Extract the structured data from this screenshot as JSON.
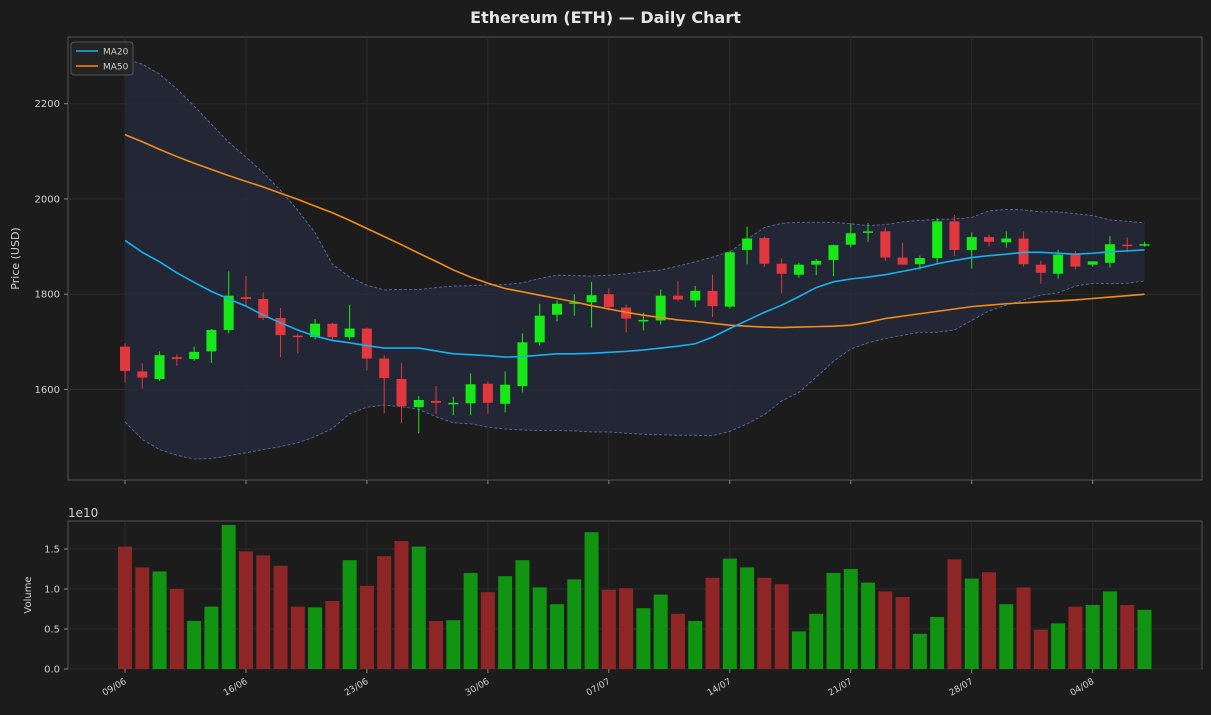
{
  "chart_data": [
    {
      "type": "candlestick",
      "title": "Ethereum (ETH) — Daily Chart",
      "ylabel": "Price (USD)",
      "ylim": [
        1410,
        2340
      ],
      "yticks": [
        "1600",
        "1800",
        "2000",
        "2200"
      ],
      "date_labels": [
        "09/06",
        "16/06",
        "23/06",
        "30/06",
        "07/07",
        "14/07",
        "21/07",
        "28/07",
        "04/08"
      ],
      "legend": [
        "MA20",
        "MA50"
      ],
      "legend_position": "top-left",
      "grid": true,
      "colors": {
        "up": "#17e817",
        "down": "#e0383e",
        "ma20": "#1ab0ef",
        "ma50": "#f28c1a",
        "band": "#5a6aa8"
      },
      "ohlc": [
        [
          1690,
          1697,
          1615,
          1639
        ],
        [
          1638,
          1655,
          1602,
          1625
        ],
        [
          1622,
          1680,
          1618,
          1672
        ],
        [
          1668,
          1674,
          1650,
          1664
        ],
        [
          1664,
          1690,
          1660,
          1679
        ],
        [
          1680,
          1727,
          1656,
          1725
        ],
        [
          1725,
          1848,
          1718,
          1797
        ],
        [
          1794,
          1838,
          1775,
          1790
        ],
        [
          1790,
          1804,
          1746,
          1750
        ],
        [
          1750,
          1771,
          1668,
          1714
        ],
        [
          1713,
          1717,
          1676,
          1711
        ],
        [
          1710,
          1748,
          1705,
          1738
        ],
        [
          1738,
          1740,
          1703,
          1710
        ],
        [
          1710,
          1778,
          1704,
          1728
        ],
        [
          1728,
          1730,
          1640,
          1665
        ],
        [
          1665,
          1672,
          1550,
          1624
        ],
        [
          1622,
          1655,
          1530,
          1565
        ],
        [
          1563,
          1586,
          1508,
          1578
        ],
        [
          1576,
          1607,
          1549,
          1572
        ],
        [
          1571,
          1585,
          1546,
          1572
        ],
        [
          1571,
          1634,
          1546,
          1611
        ],
        [
          1612,
          1617,
          1549,
          1572
        ],
        [
          1570,
          1638,
          1552,
          1610
        ],
        [
          1607,
          1718,
          1594,
          1699
        ],
        [
          1699,
          1780,
          1692,
          1755
        ],
        [
          1757,
          1787,
          1743,
          1780
        ],
        [
          1780,
          1800,
          1755,
          1783
        ],
        [
          1783,
          1826,
          1730,
          1798
        ],
        [
          1800,
          1812,
          1766,
          1773
        ],
        [
          1772,
          1778,
          1720,
          1749
        ],
        [
          1744,
          1761,
          1724,
          1746
        ],
        [
          1745,
          1810,
          1736,
          1797
        ],
        [
          1797,
          1827,
          1785,
          1789
        ],
        [
          1787,
          1817,
          1773,
          1807
        ],
        [
          1807,
          1841,
          1752,
          1775
        ],
        [
          1774,
          1890,
          1770,
          1888
        ],
        [
          1893,
          1942,
          1863,
          1917
        ],
        [
          1918,
          1921,
          1857,
          1864
        ],
        [
          1864,
          1875,
          1802,
          1843
        ],
        [
          1841,
          1866,
          1835,
          1862
        ],
        [
          1862,
          1874,
          1840,
          1870
        ],
        [
          1872,
          1904,
          1838,
          1903
        ],
        [
          1904,
          1949,
          1898,
          1928
        ],
        [
          1930,
          1950,
          1910,
          1932
        ],
        [
          1932,
          1940,
          1870,
          1877
        ],
        [
          1877,
          1908,
          1862,
          1862
        ],
        [
          1863,
          1881,
          1852,
          1876
        ],
        [
          1876,
          1960,
          1865,
          1953
        ],
        [
          1953,
          1966,
          1880,
          1893
        ],
        [
          1893,
          1930,
          1854,
          1920
        ],
        [
          1920,
          1925,
          1900,
          1910
        ],
        [
          1909,
          1932,
          1898,
          1917
        ],
        [
          1917,
          1932,
          1858,
          1863
        ],
        [
          1862,
          1870,
          1822,
          1845
        ],
        [
          1843,
          1893,
          1833,
          1883
        ],
        [
          1883,
          1891,
          1852,
          1858
        ],
        [
          1862,
          1866,
          1858,
          1869
        ],
        [
          1866,
          1922,
          1856,
          1905
        ],
        [
          1904,
          1919,
          1888,
          1903
        ],
        [
          1903,
          1910,
          1900,
          1905
        ]
      ],
      "ma20": [
        1913,
        1888,
        1868,
        1845,
        1825,
        1806,
        1790,
        1775,
        1756,
        1740,
        1725,
        1712,
        1703,
        1698,
        1692,
        1687,
        1687,
        1687,
        1681,
        1675,
        1673,
        1671,
        1668,
        1669,
        1672,
        1675,
        1675,
        1676,
        1678,
        1680,
        1683,
        1687,
        1691,
        1696,
        1710,
        1728,
        1745,
        1762,
        1777,
        1795,
        1814,
        1826,
        1832,
        1836,
        1841,
        1848,
        1855,
        1864,
        1871,
        1877,
        1881,
        1884,
        1888,
        1888,
        1886,
        1884,
        1886,
        1889,
        1891,
        1893
      ],
      "ma50": [
        2135,
        2120,
        2104,
        2089,
        2075,
        2062,
        2049,
        2037,
        2025,
        2012,
        1999,
        1985,
        1971,
        1955,
        1938,
        1921,
        1904,
        1886,
        1869,
        1851,
        1836,
        1823,
        1812,
        1805,
        1798,
        1791,
        1784,
        1776,
        1769,
        1762,
        1756,
        1751,
        1746,
        1743,
        1739,
        1735,
        1733,
        1731,
        1730,
        1731,
        1732,
        1733,
        1735,
        1741,
        1749,
        1754,
        1759,
        1764,
        1769,
        1774,
        1777,
        1780,
        1782,
        1784,
        1786,
        1788,
        1791,
        1794,
        1797,
        1800
      ],
      "upper_band": [
        2295,
        2283,
        2262,
        2231,
        2195,
        2157,
        2119,
        2088,
        2055,
        2018,
        1976,
        1929,
        1863,
        1836,
        1819,
        1809,
        1810,
        1810,
        1814,
        1817,
        1818,
        1820,
        1820,
        1824,
        1833,
        1840,
        1839,
        1838,
        1840,
        1843,
        1847,
        1851,
        1859,
        1868,
        1878,
        1889,
        1915,
        1940,
        1949,
        1951,
        1951,
        1951,
        1948,
        1944,
        1946,
        1952,
        1955,
        1957,
        1958,
        1961,
        1975,
        1978,
        1977,
        1973,
        1973,
        1969,
        1965,
        1956,
        1953,
        1950
      ],
      "lower_band": [
        1532,
        1495,
        1474,
        1462,
        1454,
        1455,
        1461,
        1467,
        1474,
        1480,
        1488,
        1501,
        1518,
        1549,
        1563,
        1567,
        1564,
        1558,
        1543,
        1530,
        1528,
        1521,
        1517,
        1515,
        1514,
        1514,
        1513,
        1511,
        1511,
        1508,
        1506,
        1505,
        1504,
        1504,
        1503,
        1512,
        1528,
        1547,
        1576,
        1594,
        1626,
        1659,
        1685,
        1698,
        1707,
        1714,
        1720,
        1720,
        1725,
        1745,
        1765,
        1777,
        1788,
        1798,
        1803,
        1817,
        1823,
        1822,
        1823,
        1828
      ]
    },
    {
      "type": "bar",
      "ylabel": "Volume",
      "multiplier_label": "1e10",
      "ylim": [
        0,
        1.85
      ],
      "yticks": [
        "0.0",
        "0.5",
        "1.0",
        "1.5"
      ],
      "date_labels": [
        "09/06",
        "16/06",
        "23/06",
        "30/06",
        "07/07",
        "14/07",
        "21/07",
        "28/07",
        "04/08"
      ],
      "colors": {
        "up": "#119411",
        "down": "#8e2626"
      },
      "values": [
        1.53,
        1.27,
        1.22,
        1.0,
        0.6,
        0.78,
        1.8,
        1.47,
        1.42,
        1.29,
        0.78,
        0.77,
        0.85,
        1.36,
        1.04,
        1.41,
        1.6,
        1.53,
        0.6,
        0.61,
        1.2,
        0.96,
        1.16,
        1.36,
        1.02,
        0.81,
        1.12,
        1.71,
        0.99,
        1.01,
        0.76,
        0.93,
        0.69,
        0.6,
        1.14,
        1.38,
        1.27,
        1.14,
        1.06,
        0.47,
        0.69,
        1.2,
        1.25,
        1.08,
        0.97,
        0.9,
        0.44,
        0.65,
        1.37,
        1.13,
        1.21,
        0.81,
        1.02,
        0.49,
        0.57,
        0.78,
        0.8,
        0.97,
        0.8,
        0.74
      ]
    }
  ]
}
